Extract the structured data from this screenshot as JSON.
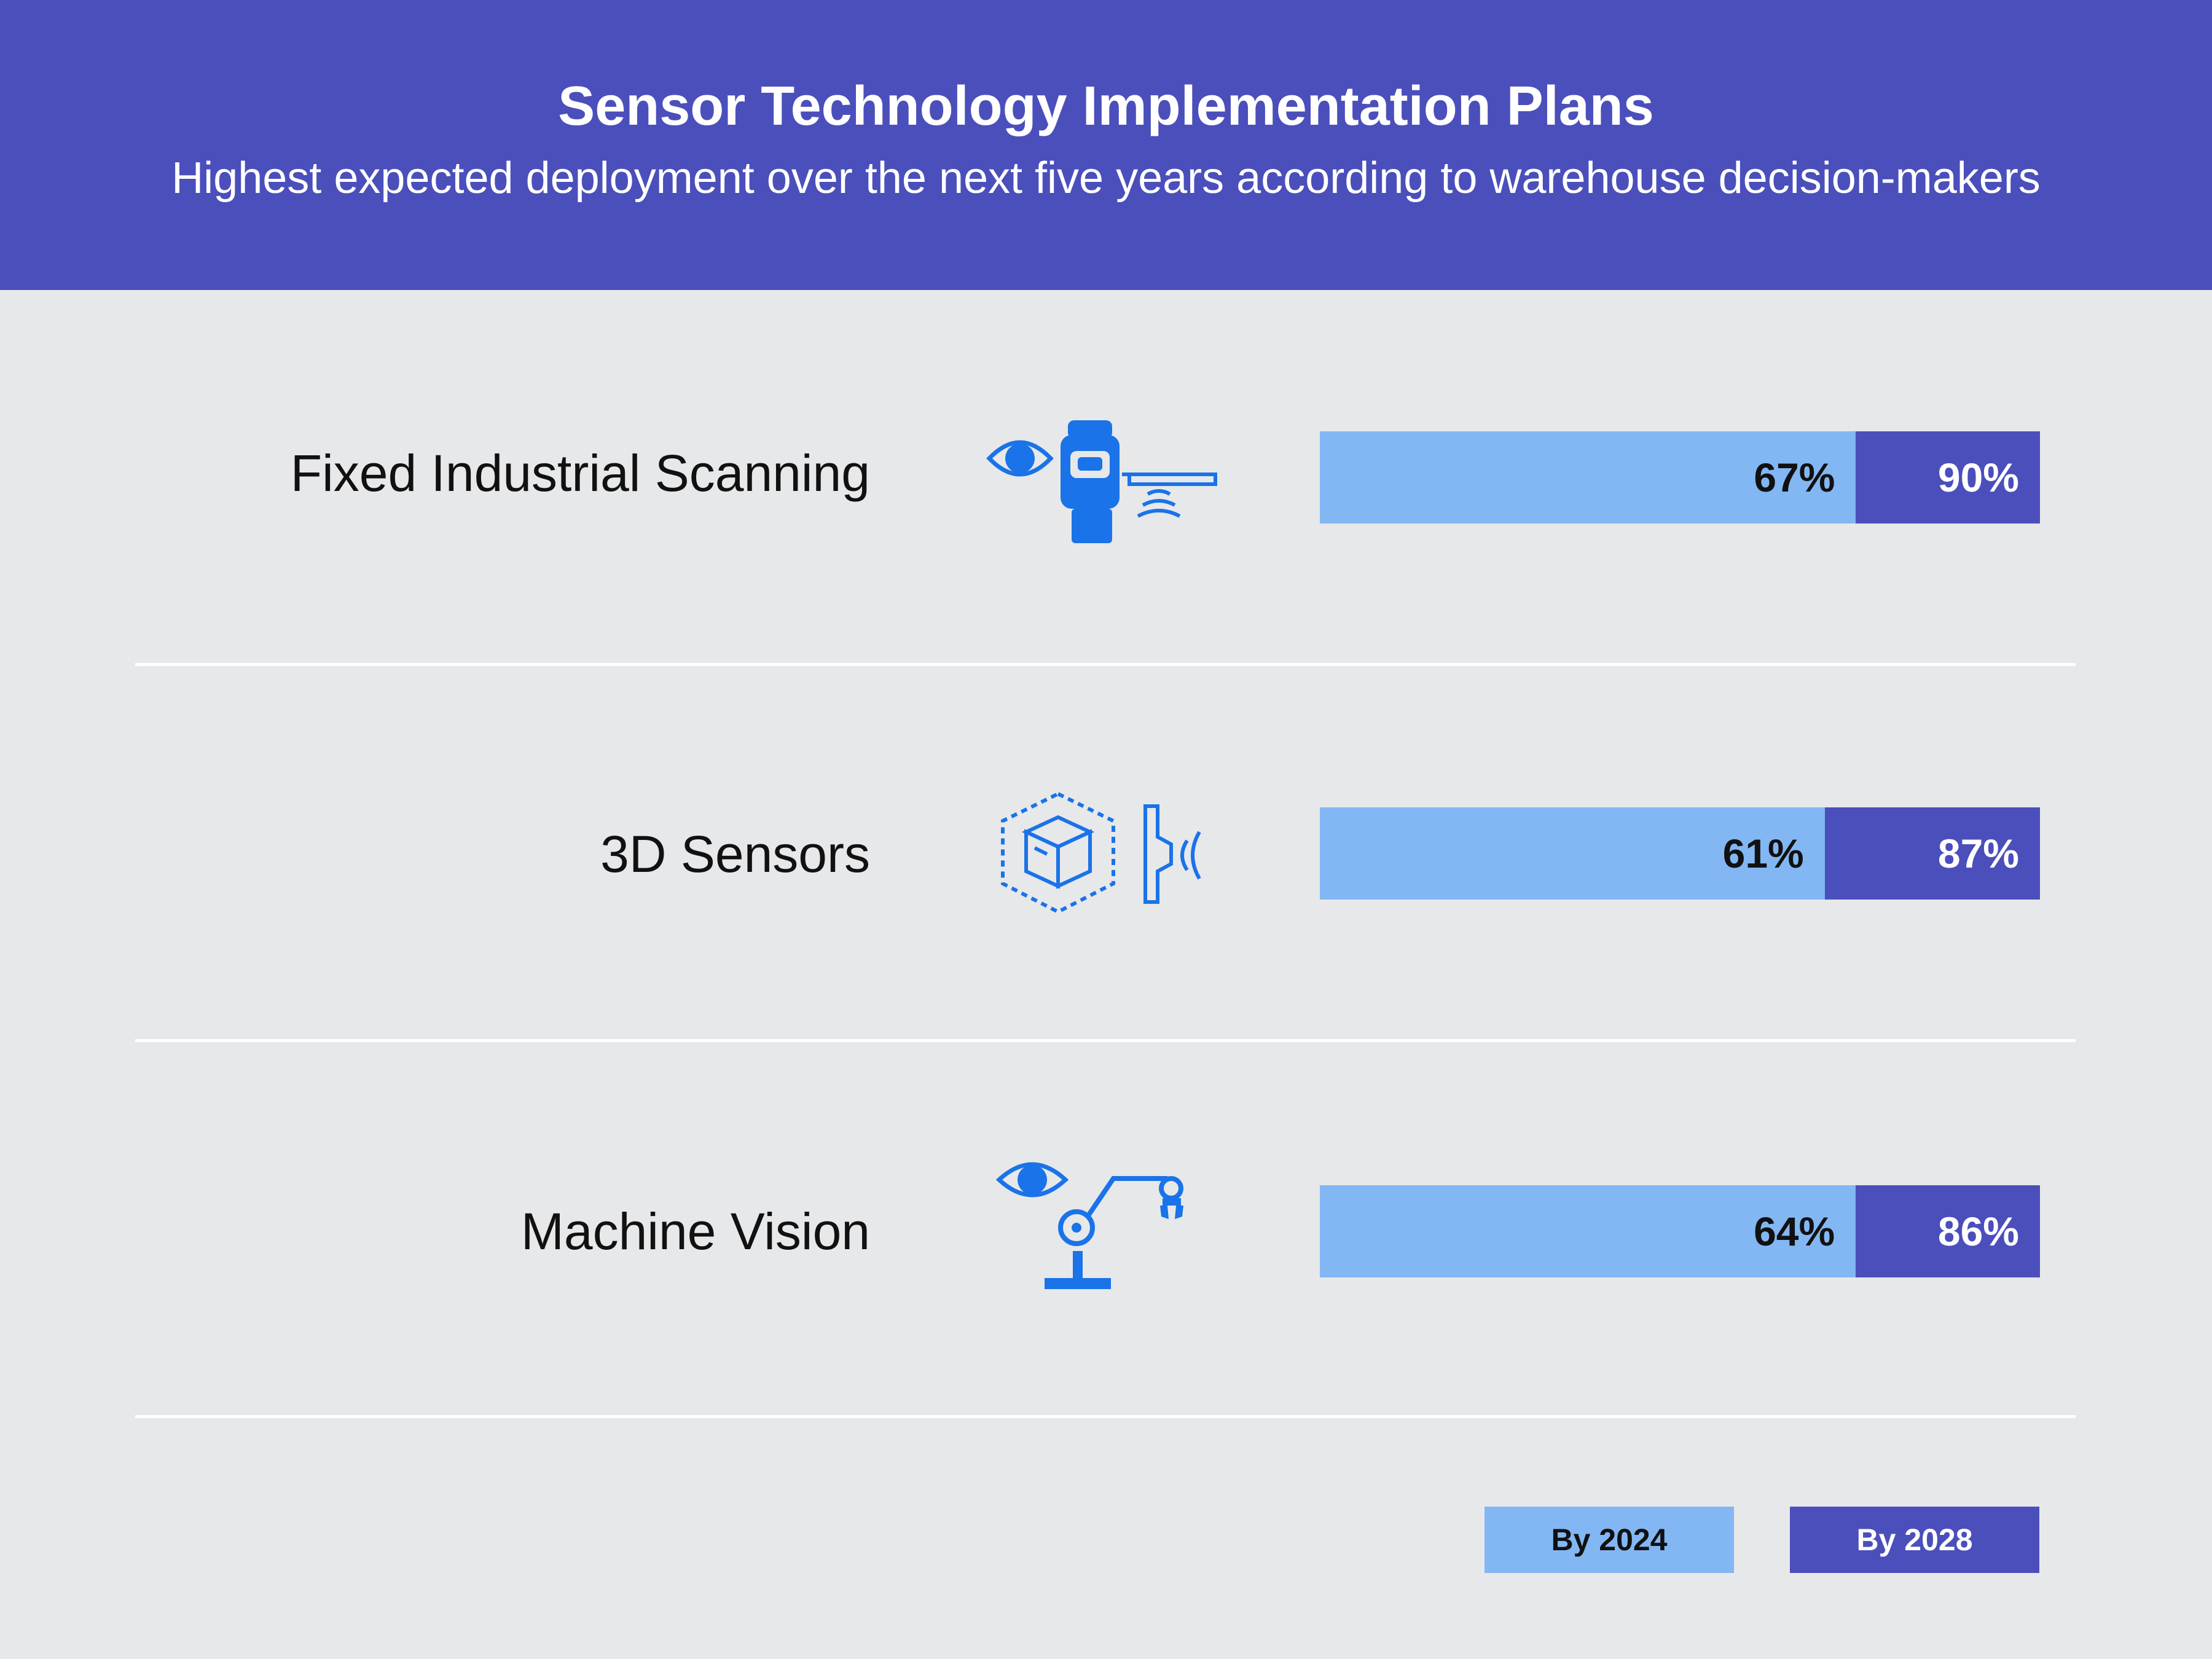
{
  "header": {
    "title": "Sensor Technology Implementation Plans",
    "subtitle": "Highest expected deployment over the next five years according to warehouse decision-makers"
  },
  "colors": {
    "header_bg": "#4b4fbb",
    "background": "#e7e8ea",
    "by_2024": "#82b7f3",
    "by_2028": "#4b4fbb",
    "icon": "#1a73e8"
  },
  "rows": [
    {
      "label": "Fixed Industrial Scanning",
      "icon": "scanner-icon"
    },
    {
      "label": "3D Sensors",
      "icon": "3d-sensor-icon"
    },
    {
      "label": "Machine Vision",
      "icon": "robot-arm-vision-icon"
    }
  ],
  "chart_data": {
    "type": "bar",
    "title": "Sensor Technology Implementation Plans",
    "subtitle": "Highest expected deployment over the next five years according to warehouse decision-makers",
    "orientation": "horizontal",
    "categories": [
      "Fixed Industrial Scanning",
      "3D Sensors",
      "Machine Vision"
    ],
    "series": [
      {
        "name": "By 2024",
        "values": [
          67,
          61,
          64
        ],
        "labels": [
          "67%",
          "61%",
          "64%"
        ]
      },
      {
        "name": "By 2028",
        "values": [
          90,
          87,
          86
        ],
        "labels": [
          "90%",
          "87%",
          "86%"
        ]
      }
    ],
    "xlim": [
      0,
      100
    ],
    "unit": "%",
    "legend": {
      "position": "bottom-right",
      "entries": [
        "By 2024",
        "By 2028"
      ]
    }
  }
}
